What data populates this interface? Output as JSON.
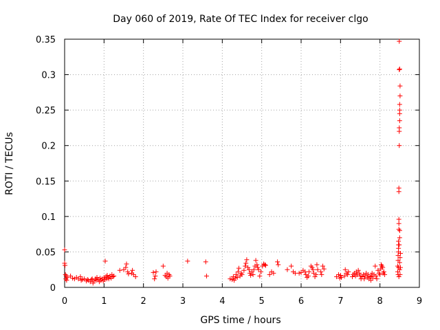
{
  "chart_data": {
    "type": "scatter",
    "title": "Day 060 of 2019, Rate Of TEC Index for receiver clgo",
    "xlabel": "GPS time / hours",
    "ylabel": "ROTI / TECUs",
    "xlim": [
      0,
      9
    ],
    "ylim": [
      0,
      0.35
    ],
    "grid": true,
    "marker": "+",
    "series_color": "#ff0000",
    "x_ticks": [
      {
        "value": 0,
        "label": "0"
      },
      {
        "value": 1,
        "label": "1"
      },
      {
        "value": 2,
        "label": "2"
      },
      {
        "value": 3,
        "label": "3"
      },
      {
        "value": 4,
        "label": "4"
      },
      {
        "value": 5,
        "label": "5"
      },
      {
        "value": 6,
        "label": "6"
      },
      {
        "value": 7,
        "label": "7"
      },
      {
        "value": 8,
        "label": "8"
      },
      {
        "value": 9,
        "label": "9"
      }
    ],
    "y_ticks": [
      {
        "value": 0,
        "label": "0"
      },
      {
        "value": 0.05,
        "label": "0.05"
      },
      {
        "value": 0.1,
        "label": "0.1"
      },
      {
        "value": 0.15,
        "label": "0.15"
      },
      {
        "value": 0.2,
        "label": "0.2"
      },
      {
        "value": 0.25,
        "label": "0.25"
      },
      {
        "value": 0.3,
        "label": "0.3"
      },
      {
        "value": 0.35,
        "label": "0.35"
      }
    ],
    "points": [
      [
        0.0,
        0.053
      ],
      [
        0.0,
        0.034
      ],
      [
        0.01,
        0.031
      ],
      [
        0.02,
        0.018
      ],
      [
        0.03,
        0.012
      ],
      [
        0.04,
        0.016
      ],
      [
        0.05,
        0.01
      ],
      [
        0.07,
        0.014
      ],
      [
        0.15,
        0.016
      ],
      [
        0.2,
        0.013
      ],
      [
        0.25,
        0.012
      ],
      [
        0.3,
        0.014
      ],
      [
        0.35,
        0.012
      ],
      [
        0.4,
        0.015
      ],
      [
        0.42,
        0.01
      ],
      [
        0.45,
        0.011
      ],
      [
        0.5,
        0.012
      ],
      [
        0.55,
        0.009
      ],
      [
        0.58,
        0.011
      ],
      [
        0.6,
        0.01
      ],
      [
        0.65,
        0.008
      ],
      [
        0.68,
        0.011
      ],
      [
        0.7,
        0.012
      ],
      [
        0.72,
        0.006
      ],
      [
        0.75,
        0.009
      ],
      [
        0.78,
        0.012
      ],
      [
        0.8,
        0.01
      ],
      [
        0.82,
        0.014
      ],
      [
        0.85,
        0.011
      ],
      [
        0.88,
        0.008
      ],
      [
        0.9,
        0.013
      ],
      [
        0.92,
        0.01
      ],
      [
        0.95,
        0.012
      ],
      [
        0.98,
        0.009
      ],
      [
        1.0,
        0.014
      ],
      [
        1.02,
        0.011
      ],
      [
        1.03,
        0.037
      ],
      [
        1.05,
        0.015
      ],
      [
        1.07,
        0.012
      ],
      [
        1.08,
        0.017
      ],
      [
        1.1,
        0.014
      ],
      [
        1.12,
        0.012
      ],
      [
        1.15,
        0.016
      ],
      [
        1.18,
        0.013
      ],
      [
        1.2,
        0.018
      ],
      [
        1.22,
        0.015
      ],
      [
        1.25,
        0.016
      ],
      [
        1.4,
        0.024
      ],
      [
        1.5,
        0.025
      ],
      [
        1.55,
        0.028
      ],
      [
        1.57,
        0.033
      ],
      [
        1.6,
        0.022
      ],
      [
        1.62,
        0.019
      ],
      [
        1.7,
        0.02
      ],
      [
        1.72,
        0.024
      ],
      [
        1.75,
        0.018
      ],
      [
        1.8,
        0.015
      ],
      [
        2.25,
        0.021
      ],
      [
        2.28,
        0.012
      ],
      [
        2.3,
        0.016
      ],
      [
        2.32,
        0.022
      ],
      [
        2.5,
        0.03
      ],
      [
        2.55,
        0.017
      ],
      [
        2.58,
        0.015
      ],
      [
        2.6,
        0.02
      ],
      [
        2.62,
        0.013
      ],
      [
        2.65,
        0.018
      ],
      [
        2.67,
        0.016
      ],
      [
        3.12,
        0.037
      ],
      [
        3.58,
        0.036
      ],
      [
        3.6,
        0.016
      ],
      [
        4.2,
        0.012
      ],
      [
        4.25,
        0.011
      ],
      [
        4.28,
        0.015
      ],
      [
        4.3,
        0.01
      ],
      [
        4.33,
        0.013
      ],
      [
        4.35,
        0.018
      ],
      [
        4.38,
        0.014
      ],
      [
        4.4,
        0.022
      ],
      [
        4.42,
        0.027
      ],
      [
        4.45,
        0.016
      ],
      [
        4.48,
        0.02
      ],
      [
        4.5,
        0.018
      ],
      [
        4.55,
        0.024
      ],
      [
        4.58,
        0.03
      ],
      [
        4.6,
        0.034
      ],
      [
        4.62,
        0.039
      ],
      [
        4.65,
        0.028
      ],
      [
        4.68,
        0.025
      ],
      [
        4.7,
        0.02
      ],
      [
        4.72,
        0.017
      ],
      [
        4.75,
        0.022
      ],
      [
        4.78,
        0.018
      ],
      [
        4.8,
        0.025
      ],
      [
        4.83,
        0.03
      ],
      [
        4.85,
        0.038
      ],
      [
        4.88,
        0.032
      ],
      [
        4.9,
        0.028
      ],
      [
        4.92,
        0.025
      ],
      [
        4.95,
        0.016
      ],
      [
        4.98,
        0.022
      ],
      [
        5.02,
        0.03
      ],
      [
        5.05,
        0.033
      ],
      [
        5.08,
        0.032
      ],
      [
        5.1,
        0.031
      ],
      [
        5.2,
        0.018
      ],
      [
        5.25,
        0.022
      ],
      [
        5.3,
        0.02
      ],
      [
        5.4,
        0.036
      ],
      [
        5.42,
        0.032
      ],
      [
        5.65,
        0.025
      ],
      [
        5.75,
        0.03
      ],
      [
        5.8,
        0.022
      ],
      [
        5.85,
        0.02
      ],
      [
        5.95,
        0.02
      ],
      [
        6.0,
        0.021
      ],
      [
        6.05,
        0.024
      ],
      [
        6.1,
        0.022
      ],
      [
        6.12,
        0.018
      ],
      [
        6.15,
        0.014
      ],
      [
        6.18,
        0.016
      ],
      [
        6.2,
        0.022
      ],
      [
        6.25,
        0.03
      ],
      [
        6.28,
        0.028
      ],
      [
        6.3,
        0.025
      ],
      [
        6.32,
        0.02
      ],
      [
        6.35,
        0.015
      ],
      [
        6.38,
        0.018
      ],
      [
        6.4,
        0.032
      ],
      [
        6.42,
        0.025
      ],
      [
        6.5,
        0.022
      ],
      [
        6.52,
        0.018
      ],
      [
        6.55,
        0.03
      ],
      [
        6.58,
        0.026
      ],
      [
        6.9,
        0.015
      ],
      [
        6.95,
        0.018
      ],
      [
        6.98,
        0.013
      ],
      [
        7.0,
        0.017
      ],
      [
        7.02,
        0.014
      ],
      [
        7.1,
        0.016
      ],
      [
        7.12,
        0.025
      ],
      [
        7.15,
        0.02
      ],
      [
        7.18,
        0.018
      ],
      [
        7.2,
        0.022
      ],
      [
        7.3,
        0.015
      ],
      [
        7.32,
        0.018
      ],
      [
        7.35,
        0.02
      ],
      [
        7.38,
        0.016
      ],
      [
        7.4,
        0.022
      ],
      [
        7.42,
        0.018
      ],
      [
        7.45,
        0.024
      ],
      [
        7.48,
        0.02
      ],
      [
        7.5,
        0.016
      ],
      [
        7.52,
        0.012
      ],
      [
        7.55,
        0.015
      ],
      [
        7.58,
        0.018
      ],
      [
        7.6,
        0.012
      ],
      [
        7.62,
        0.016
      ],
      [
        7.65,
        0.02
      ],
      [
        7.68,
        0.014
      ],
      [
        7.7,
        0.018
      ],
      [
        7.72,
        0.012
      ],
      [
        7.75,
        0.015
      ],
      [
        7.77,
        0.01
      ],
      [
        7.78,
        0.016
      ],
      [
        7.8,
        0.02
      ],
      [
        7.82,
        0.013
      ],
      [
        7.85,
        0.018
      ],
      [
        7.88,
        0.03
      ],
      [
        7.9,
        0.016
      ],
      [
        7.92,
        0.012
      ],
      [
        7.95,
        0.024
      ],
      [
        7.98,
        0.02
      ],
      [
        8.0,
        0.018
      ],
      [
        8.02,
        0.026
      ],
      [
        8.03,
        0.032
      ],
      [
        8.05,
        0.03
      ],
      [
        8.07,
        0.028
      ],
      [
        8.08,
        0.02
      ],
      [
        8.1,
        0.022
      ],
      [
        8.12,
        0.018
      ],
      [
        8.45,
        0.022
      ],
      [
        8.45,
        0.03
      ],
      [
        8.46,
        0.038
      ],
      [
        8.46,
        0.045
      ],
      [
        8.47,
        0.05
      ],
      [
        8.47,
        0.055
      ],
      [
        8.47,
        0.06
      ],
      [
        8.47,
        0.065
      ],
      [
        8.48,
        0.082
      ],
      [
        8.48,
        0.09
      ],
      [
        8.48,
        0.096
      ],
      [
        8.48,
        0.14
      ],
      [
        8.48,
        0.135
      ],
      [
        8.49,
        0.2
      ],
      [
        8.49,
        0.22
      ],
      [
        8.49,
        0.225
      ],
      [
        8.5,
        0.235
      ],
      [
        8.5,
        0.245
      ],
      [
        8.5,
        0.25
      ],
      [
        8.5,
        0.258
      ],
      [
        8.51,
        0.27
      ],
      [
        8.51,
        0.284
      ],
      [
        8.5,
        0.308
      ],
      [
        8.49,
        0.307
      ],
      [
        8.49,
        0.347
      ],
      [
        8.5,
        0.025
      ],
      [
        8.5,
        0.035
      ],
      [
        8.51,
        0.042
      ],
      [
        8.51,
        0.018
      ],
      [
        8.52,
        0.028
      ],
      [
        8.52,
        0.048
      ],
      [
        8.48,
        0.015
      ],
      [
        8.49,
        0.06
      ],
      [
        8.5,
        0.07
      ],
      [
        8.5,
        0.08
      ],
      [
        8.47,
        0.028
      ],
      [
        8.46,
        0.018
      ]
    ]
  }
}
